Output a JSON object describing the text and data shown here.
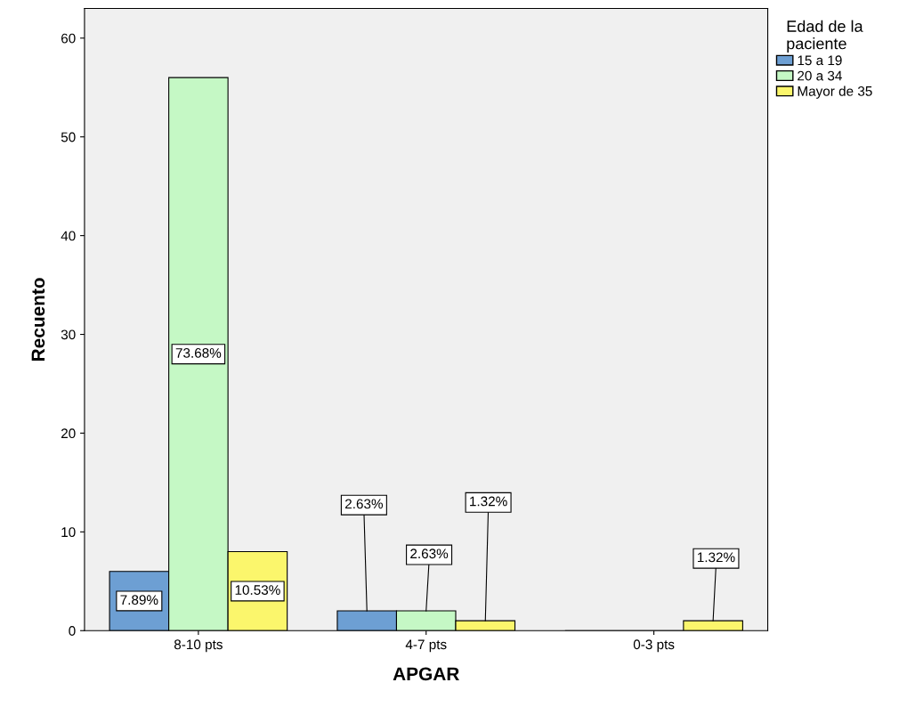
{
  "chart_data": {
    "type": "bar",
    "xlabel": "APGAR",
    "ylabel": "Recuento",
    "legend_title": "Edad de la paciente",
    "categories": [
      "8-10 pts",
      "4-7 pts",
      "0-3 pts"
    ],
    "series": [
      {
        "name": "15 a 19",
        "color": "#6d9fd3",
        "values": [
          6,
          2,
          0
        ]
      },
      {
        "name": "20 a 34",
        "color": "#c5f8c5",
        "values": [
          56,
          2,
          0
        ]
      },
      {
        "name": "Mayor de 35",
        "color": "#fbf66c",
        "values": [
          8,
          1,
          1
        ]
      }
    ],
    "annotations": [
      "7.89%",
      "73.68%",
      "10.53%",
      {
        "text": "2.63%",
        "y": 2
      },
      {
        "text": "2.63%",
        "y": 2
      },
      {
        "text": "1.32%",
        "y": 1
      },
      {
        "text": "1.32%",
        "y": 1
      }
    ],
    "ylim": [
      0,
      63
    ],
    "yticks": [
      0,
      10,
      20,
      30,
      40,
      50,
      60
    ],
    "grid": false,
    "legend": "right"
  }
}
